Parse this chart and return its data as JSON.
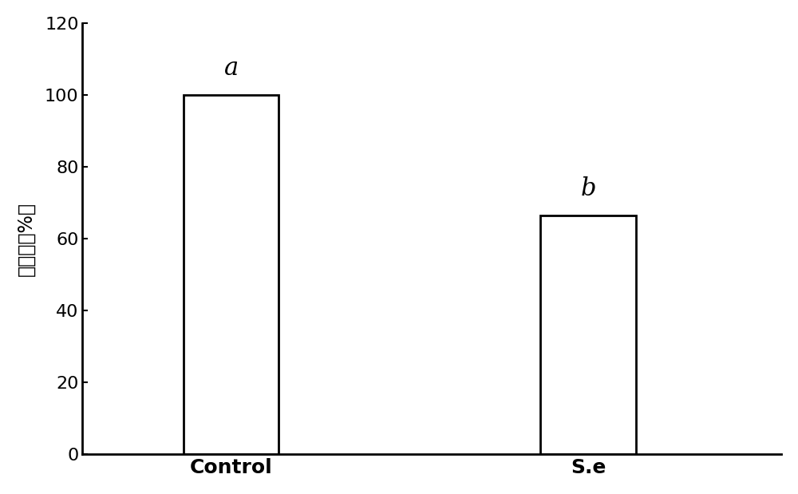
{
  "categories": [
    "Control",
    "S.e"
  ],
  "values": [
    100,
    66.5
  ],
  "bar_colors": [
    "#ffffff",
    "#ffffff"
  ],
  "bar_edgecolors": [
    "#000000",
    "#000000"
  ],
  "bar_width": 0.32,
  "bar_positions": [
    1.0,
    2.2
  ],
  "annotations": [
    "a",
    "b"
  ],
  "annotation_offsets": [
    4,
    4
  ],
  "ylabel": "发病率（%）",
  "ylim": [
    0,
    120
  ],
  "yticks": [
    0,
    20,
    40,
    60,
    80,
    100,
    120
  ],
  "background_color": "#ffffff",
  "ylabel_fontsize": 17,
  "tick_fontsize": 16,
  "annotation_fontsize": 22,
  "xlabel_fontsize": 18,
  "linewidth": 2.0,
  "xlim": [
    0.5,
    2.85
  ]
}
